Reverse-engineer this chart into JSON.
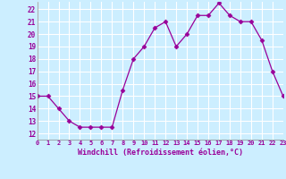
{
  "x": [
    0,
    1,
    2,
    3,
    4,
    5,
    6,
    7,
    8,
    9,
    10,
    11,
    12,
    13,
    14,
    15,
    16,
    17,
    18,
    19,
    20,
    21,
    22,
    23
  ],
  "y": [
    15,
    15,
    14,
    13,
    12.5,
    12.5,
    12.5,
    12.5,
    15.5,
    18,
    19,
    20.5,
    21,
    19,
    20,
    21.5,
    21.5,
    22.5,
    21.5,
    21,
    21,
    19.5,
    17,
    15
  ],
  "xlim": [
    0,
    23
  ],
  "ylim": [
    11.5,
    22.6
  ],
  "yticks": [
    12,
    13,
    14,
    15,
    16,
    17,
    18,
    19,
    20,
    21,
    22
  ],
  "xtick_labels": [
    "0",
    "1",
    "2",
    "3",
    "4",
    "5",
    "6",
    "7",
    "8",
    "9",
    "10",
    "11",
    "12",
    "13",
    "14",
    "15",
    "16",
    "17",
    "18",
    "19",
    "20",
    "21",
    "22",
    "23"
  ],
  "xlabel": "Windchill (Refroidissement éolien,°C)",
  "line_color": "#990099",
  "marker": "D",
  "marker_size": 2.5,
  "bg_color": "#cceeff",
  "grid_color": "#ffffff",
  "tick_color": "#990099",
  "label_color": "#990099"
}
